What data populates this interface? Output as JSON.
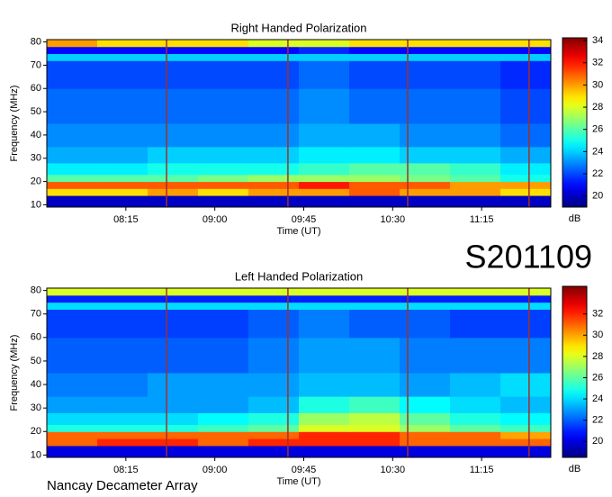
{
  "label": "S201109",
  "footer": "Nancay Decameter Array",
  "chart_data": [
    {
      "type": "heatmap",
      "title": "Right Handed Polarization",
      "xlabel": "Time (UT)",
      "ylabel": "Frequency (MHz)",
      "colorbar_label": "dB",
      "xlim": [
        455,
        710
      ],
      "ylim": [
        9,
        81
      ],
      "xticks": [
        {
          "value": 495,
          "label": "08:15"
        },
        {
          "value": 540,
          "label": "09:00"
        },
        {
          "value": 585,
          "label": "09:45"
        },
        {
          "value": 630,
          "label": "10:30"
        },
        {
          "value": 675,
          "label": "11:15"
        }
      ],
      "yticks": [
        10,
        20,
        30,
        40,
        50,
        60,
        70,
        80
      ],
      "clim": [
        19,
        34.25
      ],
      "cticks": [
        20,
        22,
        24,
        26,
        28,
        30,
        32,
        34
      ],
      "colormap": "jet",
      "x_edges": [
        455,
        480.5,
        506,
        531.5,
        557,
        582.5,
        608,
        633.5,
        659,
        684.5,
        710
      ],
      "y_edges": [
        9,
        14,
        17,
        20,
        23,
        28,
        35,
        45,
        60,
        72,
        75,
        78,
        81
      ],
      "z": [
        [
          20,
          20,
          20,
          20,
          20,
          20,
          20,
          20,
          20,
          20
        ],
        [
          29,
          29,
          30,
          29,
          30,
          30,
          31,
          30,
          30,
          29
        ],
        [
          31,
          31,
          31,
          31,
          31,
          32,
          31,
          31,
          30,
          30
        ],
        [
          26,
          26,
          26,
          26.5,
          27,
          27,
          27,
          26.5,
          26,
          25
        ],
        [
          24.5,
          24.5,
          25,
          25,
          25,
          25.5,
          26,
          26,
          25.5,
          24.5
        ],
        [
          23.5,
          23.5,
          24,
          24,
          24,
          24.5,
          24.5,
          24,
          24,
          23.5
        ],
        [
          23,
          23,
          23,
          23,
          23,
          23.5,
          23.5,
          23,
          23,
          22.5
        ],
        [
          22.5,
          22.5,
          22.5,
          22.5,
          22.5,
          23,
          22.5,
          22.5,
          22.5,
          22
        ],
        [
          22,
          22,
          22,
          22,
          22,
          22.5,
          22,
          22,
          22,
          21.5
        ],
        [
          24,
          24,
          24,
          24,
          24,
          24,
          24,
          24,
          24,
          24
        ],
        [
          21,
          21,
          21,
          21,
          21,
          21.5,
          21,
          21,
          21,
          21
        ],
        [
          30,
          29,
          29,
          29,
          28,
          28,
          29,
          29,
          29,
          29
        ]
      ],
      "event_lines": {
        "x": [
          515.6,
          577,
          637.6,
          699
        ],
        "color": "#a0302a"
      }
    },
    {
      "type": "heatmap",
      "title": "Left Handed Polarization",
      "xlabel": "Time (UT)",
      "ylabel": "Frequency (MHz)",
      "colorbar_label": "dB",
      "xlim": [
        455,
        710
      ],
      "ylim": [
        9,
        81
      ],
      "xticks": [
        {
          "value": 495,
          "label": "08:15"
        },
        {
          "value": 540,
          "label": "09:00"
        },
        {
          "value": 585,
          "label": "09:45"
        },
        {
          "value": 630,
          "label": "10:30"
        },
        {
          "value": 675,
          "label": "11:15"
        }
      ],
      "yticks": [
        10,
        20,
        30,
        40,
        50,
        60,
        70,
        80
      ],
      "clim": [
        18.5,
        34.6
      ],
      "cticks": [
        20,
        22,
        24,
        26,
        28,
        30,
        32
      ],
      "colormap": "jet",
      "x_edges": [
        455,
        480.5,
        506,
        531.5,
        557,
        582.5,
        608,
        633.5,
        659,
        684.5,
        710
      ],
      "y_edges": [
        9,
        14,
        17,
        20,
        23,
        28,
        35,
        45,
        60,
        72,
        75,
        78,
        81
      ],
      "z": [
        [
          20,
          20,
          20,
          20,
          20,
          20,
          20,
          20,
          20,
          20
        ],
        [
          31,
          32,
          32,
          31,
          32,
          32,
          32,
          31,
          31,
          31
        ],
        [
          31,
          31,
          31,
          31,
          31,
          32,
          32,
          31,
          31,
          30
        ],
        [
          25,
          25,
          25,
          25.5,
          26,
          28,
          28,
          27,
          26,
          25.5
        ],
        [
          24,
          24,
          24,
          24.5,
          25,
          27,
          27.5,
          26,
          25,
          24.5
        ],
        [
          23,
          23,
          23,
          23,
          23.5,
          25,
          25.5,
          24.5,
          24,
          23.5
        ],
        [
          22.5,
          22.5,
          23,
          23,
          23,
          23.5,
          23.5,
          23,
          23.5,
          24
        ],
        [
          22,
          22,
          22,
          22,
          22.5,
          23,
          23,
          22.5,
          22.5,
          22.5
        ],
        [
          21.5,
          21.5,
          21.5,
          21.5,
          22,
          22.5,
          22,
          22,
          21.5,
          21.5
        ],
        [
          24,
          24,
          24,
          24,
          24,
          24,
          24,
          24,
          24,
          24
        ],
        [
          21,
          21,
          21,
          21,
          21,
          21,
          21,
          21,
          21,
          21
        ],
        [
          28,
          28,
          28,
          28,
          28,
          28,
          28,
          28,
          28,
          28
        ]
      ],
      "event_lines": {
        "x": [
          515.6,
          577,
          637.6,
          699
        ],
        "color": "#a0302a"
      }
    }
  ]
}
